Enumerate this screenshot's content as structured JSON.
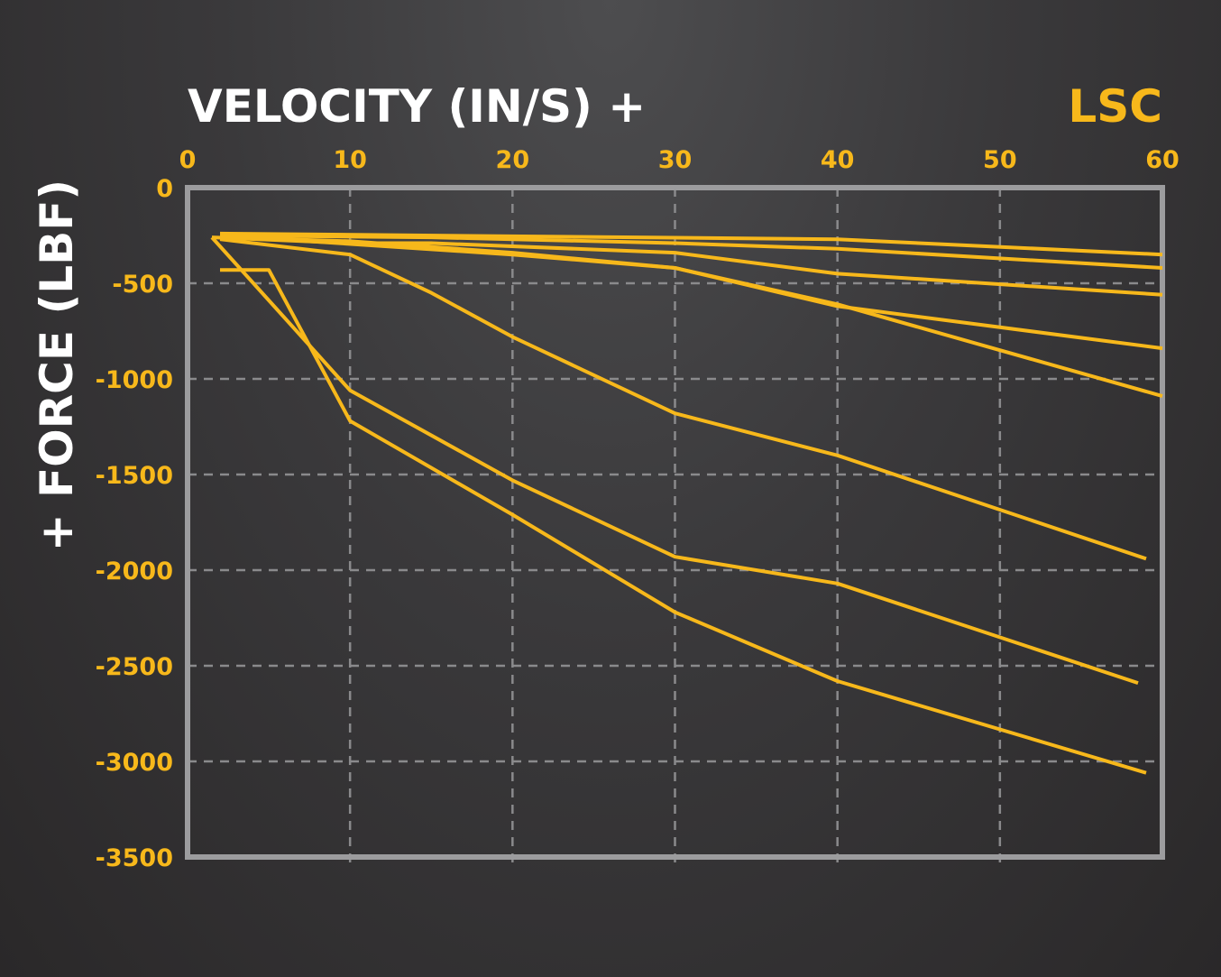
{
  "colors": {
    "accent": "#f7b81b",
    "title_text": "#ffffff",
    "frame": "#9c9c9e",
    "grid": "#8a8a8c"
  },
  "chart_data": {
    "type": "line",
    "title": "VELOCITY (IN/S) +",
    "corner_label": "LSC",
    "xlabel": "VELOCITY (IN/S) +",
    "ylabel": "+ FORCE (LBF)",
    "xlim": [
      0,
      60
    ],
    "ylim": [
      -3500,
      0
    ],
    "x_ticks": [
      "0",
      "10",
      "20",
      "30",
      "40",
      "50",
      "60"
    ],
    "y_ticks": [
      "0",
      "-500",
      "-1000",
      "-1500",
      "-2000",
      "-2500",
      "-3000",
      "-3500"
    ],
    "x_tick_values": [
      0,
      10,
      20,
      30,
      40,
      50,
      60
    ],
    "y_tick_values": [
      0,
      -500,
      -1000,
      -1500,
      -2000,
      -2500,
      -3000,
      -3500
    ],
    "x_axis_position": "top",
    "grid": true,
    "series": [
      {
        "x": [
          2,
          40,
          60
        ],
        "y": [
          -240,
          -270,
          -350
        ]
      },
      {
        "x": [
          2,
          15,
          30,
          40,
          60
        ],
        "y": [
          -250,
          -260,
          -290,
          -320,
          -420
        ]
      },
      {
        "x": [
          1.5,
          10,
          15,
          30,
          40,
          60
        ],
        "y": [
          -260,
          -290,
          -290,
          -340,
          -450,
          -560
        ]
      },
      {
        "x": [
          2,
          20,
          30,
          40,
          60
        ],
        "y": [
          -250,
          -350,
          -420,
          -620,
          -840
        ]
      },
      {
        "x": [
          2,
          10,
          20,
          30,
          40,
          60
        ],
        "y": [
          -260,
          -280,
          -340,
          -420,
          -610,
          -1090
        ]
      },
      {
        "x": [
          2,
          10,
          15,
          20,
          30,
          40,
          59
        ],
        "y": [
          -270,
          -350,
          -550,
          -780,
          -1180,
          -1400,
          -1940
        ]
      },
      {
        "x": [
          2,
          5,
          10,
          20,
          30,
          40,
          59
        ],
        "y": [
          -430,
          -430,
          -1220,
          -1710,
          -2220,
          -2580,
          -3060
        ]
      },
      {
        "x": [
          1.5,
          10,
          20,
          30,
          40,
          58.5
        ],
        "y": [
          -260,
          -1060,
          -1530,
          -1930,
          -2070,
          -2590
        ]
      }
    ]
  }
}
